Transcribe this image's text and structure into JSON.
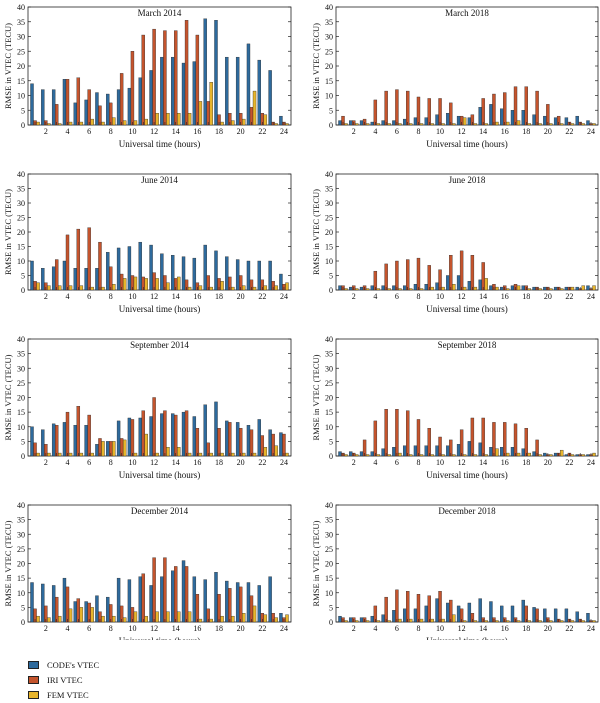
{
  "colors": {
    "code": "#2e6a9c",
    "iri": "#c4542d",
    "fem": "#e8b52c"
  },
  "legend": [
    {
      "key": "code",
      "label": "CODE's VTEC"
    },
    {
      "key": "iri",
      "label": "IRI VTEC"
    },
    {
      "key": "fem",
      "label": "FEM VTEC"
    }
  ],
  "chart_data": [
    {
      "type": "bar",
      "title": "March 2014",
      "xlabel": "Universal time (hours)",
      "ylabel": "RMSE in VTEC (TECU)",
      "ylim": [
        0,
        40
      ],
      "yticks": [
        0,
        5,
        10,
        15,
        20,
        25,
        30,
        35,
        40
      ],
      "categories": [
        1,
        2,
        3,
        4,
        5,
        6,
        7,
        8,
        9,
        10,
        11,
        12,
        13,
        14,
        15,
        16,
        17,
        18,
        19,
        20,
        21,
        22,
        23,
        24
      ],
      "xtick_labels": [
        "2",
        "4",
        "6",
        "8",
        "10",
        "12",
        "14",
        "16",
        "18",
        "20",
        "22",
        "24"
      ],
      "series": [
        {
          "name": "CODE's VTEC",
          "values": [
            14,
            12,
            12,
            15.5,
            7.5,
            8.5,
            11,
            10.5,
            12,
            12.5,
            16,
            18.5,
            23,
            23,
            21,
            21.5,
            36,
            35.5,
            23,
            23,
            27.5,
            22,
            18.5,
            3
          ]
        },
        {
          "name": "IRI VTEC",
          "values": [
            1.5,
            1.5,
            7,
            15.5,
            16,
            12,
            6.5,
            7.5,
            17.5,
            25,
            30.5,
            32.5,
            32,
            32,
            35.5,
            30.5,
            8,
            3.5,
            4,
            4,
            6,
            4,
            1,
            1
          ]
        },
        {
          "name": "FEM VTEC",
          "values": [
            1,
            0.5,
            0.5,
            1,
            1,
            2,
            1,
            2.5,
            1.5,
            1.5,
            2,
            4,
            4,
            4,
            4,
            8,
            14.5,
            1,
            1.5,
            2,
            11.5,
            3.5,
            0.5,
            0.5
          ]
        }
      ]
    },
    {
      "type": "bar",
      "title": "March 2018",
      "xlabel": "Universal time (hours)",
      "ylabel": "RMSE in VTEC (TECU)",
      "ylim": [
        0,
        40
      ],
      "yticks": [
        0,
        5,
        10,
        15,
        20,
        25,
        30,
        35,
        40
      ],
      "categories": [
        1,
        2,
        3,
        4,
        5,
        6,
        7,
        8,
        9,
        10,
        11,
        12,
        13,
        14,
        15,
        16,
        17,
        18,
        19,
        20,
        21,
        22,
        23,
        24
      ],
      "xtick_labels": [
        "2",
        "4",
        "6",
        "8",
        "10",
        "12",
        "14",
        "16",
        "18",
        "20",
        "22",
        "24"
      ],
      "series": [
        {
          "name": "CODE's VTEC",
          "values": [
            1.5,
            1.5,
            1.5,
            1,
            1.5,
            1.5,
            2,
            2.5,
            2.5,
            3.5,
            4,
            3,
            2.5,
            6,
            7,
            5.5,
            5,
            5,
            3.5,
            3,
            2.5,
            2.5,
            3,
            1.5
          ]
        },
        {
          "name": "IRI VTEC",
          "values": [
            3,
            1.5,
            2,
            8.5,
            11.5,
            12,
            11.5,
            9.5,
            9,
            9,
            7.5,
            3,
            3.5,
            9,
            10.5,
            11,
            13,
            13,
            11.5,
            7,
            3,
            1,
            1,
            0.5
          ]
        },
        {
          "name": "FEM VTEC",
          "values": [
            0.5,
            0.5,
            0.5,
            0.5,
            0.5,
            0.5,
            0.5,
            0.5,
            0.5,
            0.5,
            0.5,
            2.5,
            0.5,
            0.5,
            1,
            1,
            1.5,
            0.5,
            0.5,
            0.5,
            0.5,
            0.5,
            0.5,
            0.5
          ]
        }
      ]
    },
    {
      "type": "bar",
      "title": "June 2014",
      "xlabel": "Universal time (hours)",
      "ylabel": "RMSE in VTEC (TECU)",
      "ylim": [
        0,
        40
      ],
      "yticks": [
        0,
        5,
        10,
        15,
        20,
        25,
        30,
        35,
        40
      ],
      "categories": [
        1,
        2,
        3,
        4,
        5,
        6,
        7,
        8,
        9,
        10,
        11,
        12,
        13,
        14,
        15,
        16,
        17,
        18,
        19,
        20,
        21,
        22,
        23,
        24
      ],
      "xtick_labels": [
        "2",
        "4",
        "6",
        "8",
        "10",
        "12",
        "14",
        "16",
        "18",
        "20",
        "22",
        "24"
      ],
      "series": [
        {
          "name": "CODE's VTEC",
          "values": [
            10,
            7.5,
            8,
            10,
            7.5,
            7.5,
            7.5,
            13,
            14.5,
            15,
            16.5,
            15.5,
            12.5,
            12,
            11.5,
            11,
            15.5,
            13.5,
            11.5,
            10.5,
            10,
            10,
            10,
            5.5
          ]
        },
        {
          "name": "IRI VTEC",
          "values": [
            3,
            2.5,
            10.5,
            19,
            21,
            21.5,
            16.5,
            8,
            5.5,
            5,
            4.5,
            6,
            5,
            4,
            3.5,
            2.5,
            5,
            4,
            4.5,
            5,
            3.5,
            3.5,
            3,
            2
          ]
        },
        {
          "name": "FEM VTEC",
          "values": [
            2.5,
            1.5,
            1.5,
            1.5,
            1.5,
            1,
            1,
            2,
            4,
            4.5,
            4,
            4,
            2.5,
            4.5,
            1,
            1.5,
            1,
            3,
            1,
            1.5,
            1,
            1.5,
            1.5,
            2.5
          ]
        }
      ]
    },
    {
      "type": "bar",
      "title": "June 2018",
      "xlabel": "Universal time (hours)",
      "ylabel": "RMSE in VTEC (TECU)",
      "ylim": [
        0,
        40
      ],
      "yticks": [
        0,
        5,
        10,
        15,
        20,
        25,
        30,
        35,
        40
      ],
      "categories": [
        1,
        2,
        3,
        4,
        5,
        6,
        7,
        8,
        9,
        10,
        11,
        12,
        13,
        14,
        15,
        16,
        17,
        18,
        19,
        20,
        21,
        22,
        23,
        24
      ],
      "xtick_labels": [
        "2",
        "4",
        "6",
        "8",
        "10",
        "12",
        "14",
        "16",
        "18",
        "20",
        "22",
        "24"
      ],
      "series": [
        {
          "name": "CODE's VTEC",
          "values": [
            1.5,
            1,
            1,
            1.5,
            1.5,
            1.5,
            1.5,
            2,
            2,
            2.5,
            5,
            5,
            3,
            3.5,
            1.5,
            1,
            1.5,
            1.5,
            1,
            1,
            1,
            1,
            1,
            1.5
          ]
        },
        {
          "name": "IRI VTEC",
          "values": [
            1.5,
            1.5,
            1.5,
            6.5,
            9,
            10,
            10.5,
            11,
            8.5,
            7,
            12,
            13.5,
            12,
            9.5,
            2,
            1.5,
            2,
            1.5,
            1,
            1,
            1,
            1,
            0.5,
            0.5
          ]
        },
        {
          "name": "FEM VTEC",
          "values": [
            0.5,
            0.5,
            0.5,
            0.5,
            0.5,
            0.5,
            0.5,
            0.5,
            1,
            1,
            2,
            1,
            1,
            4,
            1,
            0.5,
            1.5,
            0.5,
            0.5,
            0.5,
            0.5,
            1,
            1.5,
            1.5
          ]
        }
      ]
    },
    {
      "type": "bar",
      "title": "September 2014",
      "xlabel": "Universal time (hours)",
      "ylabel": "RMSE in VTEC (TECU)",
      "ylim": [
        0,
        40
      ],
      "yticks": [
        0,
        5,
        10,
        15,
        20,
        25,
        30,
        35,
        40
      ],
      "categories": [
        1,
        2,
        3,
        4,
        5,
        6,
        7,
        8,
        9,
        10,
        11,
        12,
        13,
        14,
        15,
        16,
        17,
        18,
        19,
        20,
        21,
        22,
        23,
        24
      ],
      "xtick_labels": [
        "2",
        "4",
        "6",
        "8",
        "10",
        "12",
        "14",
        "16",
        "18",
        "20",
        "22",
        "24"
      ],
      "series": [
        {
          "name": "CODE's VTEC",
          "values": [
            10,
            9,
            11,
            11.5,
            10.5,
            10.5,
            4,
            5,
            12,
            13,
            13,
            13.5,
            14.5,
            14.5,
            15,
            13.5,
            17.5,
            18.5,
            12,
            11.5,
            10.5,
            12.5,
            9,
            8
          ]
        },
        {
          "name": "IRI VTEC",
          "values": [
            4.5,
            4,
            10.5,
            15,
            17,
            14,
            6,
            5,
            6,
            12.5,
            15.5,
            20,
            15.5,
            14,
            15.5,
            9.5,
            4.5,
            9.5,
            11.5,
            9.5,
            9,
            7,
            7.5,
            7.5
          ]
        },
        {
          "name": "FEM VTEC",
          "values": [
            1,
            1,
            1,
            1,
            1,
            1,
            5,
            5,
            5.5,
            1,
            7.5,
            1,
            3,
            3,
            1,
            1,
            1,
            1,
            1,
            1,
            1,
            3,
            3.5,
            1
          ]
        }
      ]
    },
    {
      "type": "bar",
      "title": "September 2018",
      "xlabel": "Universal time (hours)",
      "ylabel": "RMSE in VTEC (TECU)",
      "ylim": [
        0,
        40
      ],
      "yticks": [
        0,
        5,
        10,
        15,
        20,
        25,
        30,
        35,
        40
      ],
      "categories": [
        1,
        2,
        3,
        4,
        5,
        6,
        7,
        8,
        9,
        10,
        11,
        12,
        13,
        14,
        15,
        16,
        17,
        18,
        19,
        20,
        21,
        22,
        23,
        24
      ],
      "xtick_labels": [
        "2",
        "4",
        "6",
        "8",
        "10",
        "12",
        "14",
        "16",
        "18",
        "20",
        "22",
        "24"
      ],
      "series": [
        {
          "name": "CODE's VTEC",
          "values": [
            1.5,
            1.5,
            1.5,
            1.5,
            2.5,
            3,
            3.5,
            3.5,
            3.5,
            3.5,
            3.5,
            4,
            5,
            4.5,
            3,
            3,
            3,
            2.5,
            1.5,
            1,
            1,
            0.5,
            0.5,
            0.5
          ]
        },
        {
          "name": "IRI VTEC",
          "values": [
            1,
            1,
            5.5,
            12,
            16,
            16,
            15.5,
            12.5,
            9.5,
            6.5,
            5.5,
            9,
            13,
            13,
            11.5,
            11.5,
            11,
            9.5,
            5.5,
            0.5,
            1,
            1,
            0.5,
            0.5
          ]
        },
        {
          "name": "FEM VTEC",
          "values": [
            0.5,
            0.5,
            0.5,
            0.5,
            0.5,
            1,
            0.5,
            0.5,
            0.5,
            0.5,
            0.5,
            0.5,
            0.5,
            0.5,
            2.5,
            1,
            1,
            1,
            0.5,
            0.5,
            2,
            0.5,
            0.5,
            1
          ]
        }
      ]
    },
    {
      "type": "bar",
      "title": "December 2014",
      "xlabel": "Universal time (hours)",
      "ylabel": "RMSE in VTEC (TECU)",
      "ylim": [
        0,
        40
      ],
      "yticks": [
        0,
        5,
        10,
        15,
        20,
        25,
        30,
        35,
        40
      ],
      "categories": [
        1,
        2,
        3,
        4,
        5,
        6,
        7,
        8,
        9,
        10,
        11,
        12,
        13,
        14,
        15,
        16,
        17,
        18,
        19,
        20,
        21,
        22,
        23,
        24
      ],
      "xtick_labels": [
        "2",
        "4",
        "6",
        "8",
        "10",
        "12",
        "14",
        "16",
        "18",
        "20",
        "22",
        "24"
      ],
      "series": [
        {
          "name": "CODE's VTEC",
          "values": [
            13.5,
            13,
            12.5,
            15,
            7,
            7,
            9,
            8.5,
            15,
            14.5,
            15.5,
            12.5,
            15.5,
            17.5,
            21,
            15.5,
            14.5,
            17,
            14,
            13.5,
            13.5,
            12.5,
            15.5,
            3
          ]
        },
        {
          "name": "IRI VTEC",
          "values": [
            4.5,
            5.5,
            8.5,
            12,
            8,
            6.5,
            3.5,
            6,
            5.5,
            5,
            16.5,
            22,
            22,
            19,
            19,
            9.5,
            4.5,
            9.5,
            11.5,
            12,
            9,
            3,
            3,
            1.5
          ]
        },
        {
          "name": "FEM VTEC",
          "values": [
            2,
            1.5,
            2,
            4.5,
            5,
            5,
            2,
            2,
            1.5,
            3.5,
            2,
            3.5,
            3.5,
            3.5,
            3.5,
            1,
            1,
            2,
            2,
            3,
            5.5,
            2.5,
            1.5,
            2.5
          ]
        }
      ]
    },
    {
      "type": "bar",
      "title": "December 2018",
      "xlabel": "Universal time (hours)",
      "ylabel": "RMSE in VTEC (TECU)",
      "ylim": [
        0,
        40
      ],
      "yticks": [
        0,
        5,
        10,
        15,
        20,
        25,
        30,
        35,
        40
      ],
      "categories": [
        1,
        2,
        3,
        4,
        5,
        6,
        7,
        8,
        9,
        10,
        11,
        12,
        13,
        14,
        15,
        16,
        17,
        18,
        19,
        20,
        21,
        22,
        23,
        24
      ],
      "xtick_labels": [
        "2",
        "4",
        "6",
        "8",
        "10",
        "12",
        "14",
        "16",
        "18",
        "20",
        "22",
        "24"
      ],
      "series": [
        {
          "name": "CODE's VTEC",
          "values": [
            2,
            1.5,
            1.5,
            2,
            2.5,
            4,
            4.5,
            4.5,
            5.5,
            8,
            6.5,
            5.5,
            6.5,
            8,
            7,
            5.5,
            5.5,
            7.5,
            5,
            4.5,
            4.5,
            4.5,
            3.5,
            3
          ]
        },
        {
          "name": "IRI VTEC",
          "values": [
            1.5,
            1.5,
            1.5,
            5.5,
            8.5,
            11,
            10.5,
            9.5,
            9,
            10.5,
            7.5,
            4.5,
            3,
            1.5,
            1.5,
            1.5,
            1.5,
            5.5,
            4.5,
            1.5,
            1,
            1,
            1,
            0.5
          ]
        },
        {
          "name": "FEM VTEC",
          "values": [
            0.5,
            0.5,
            0.5,
            0.5,
            0.5,
            1,
            1,
            1,
            1,
            1,
            2.5,
            0.5,
            0.5,
            0.5,
            0.5,
            0.5,
            0.5,
            0.5,
            0.5,
            0.5,
            0.5,
            0.5,
            0.5,
            0.5
          ]
        }
      ]
    }
  ]
}
